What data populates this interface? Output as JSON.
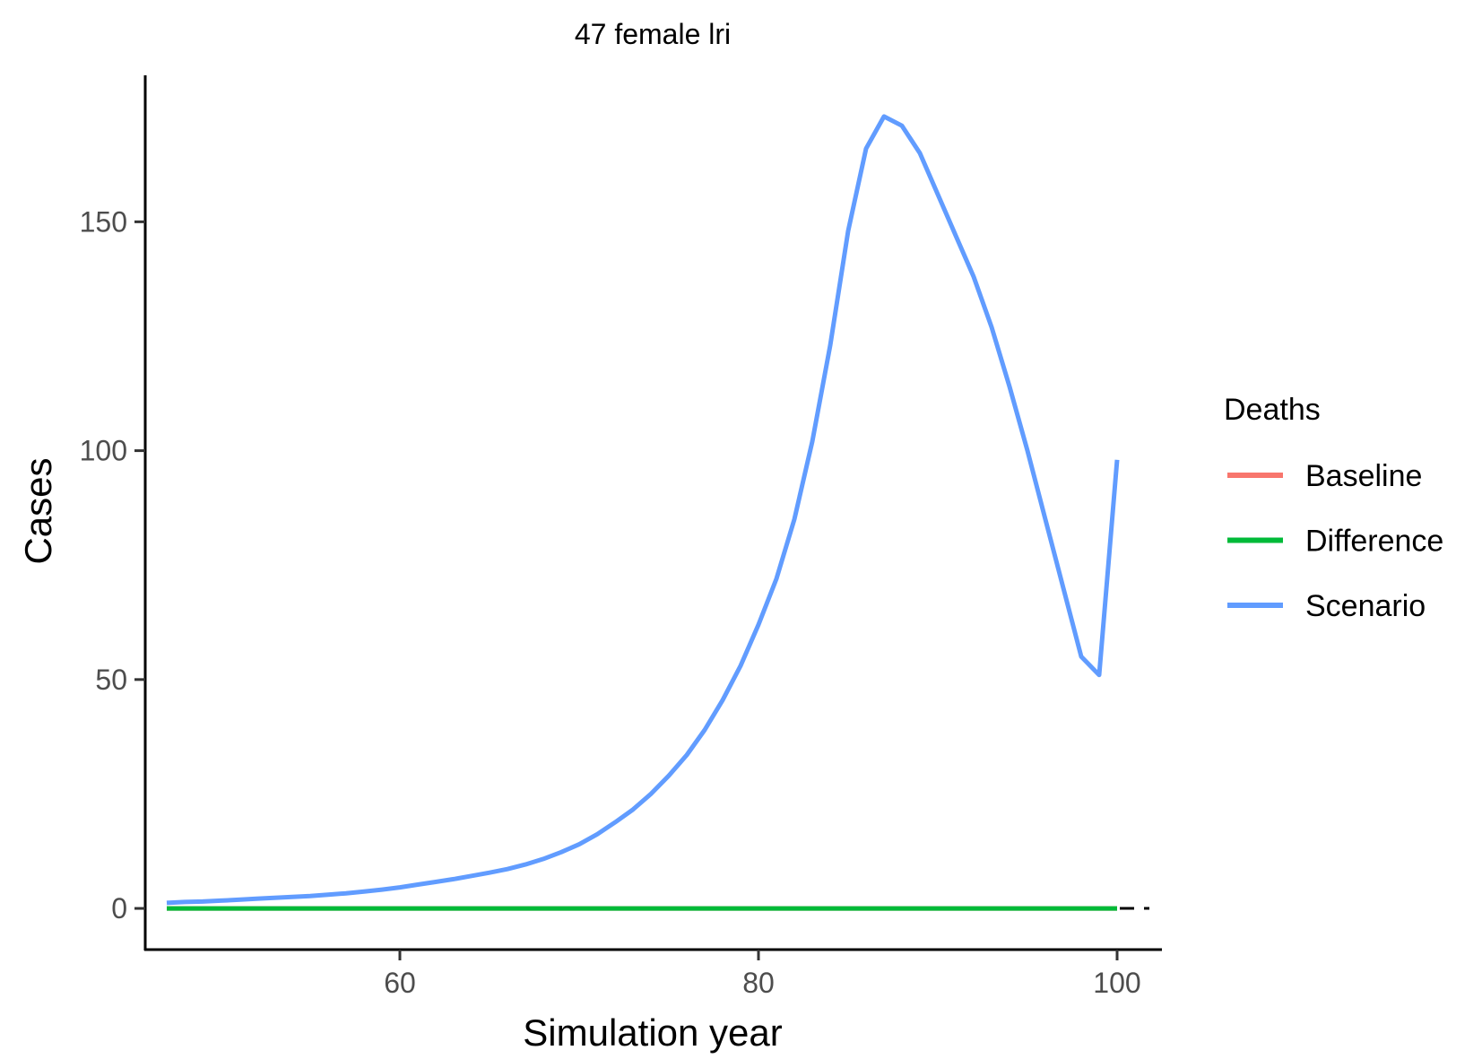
{
  "chart_data": {
    "type": "line",
    "title": "47 female lri",
    "xlabel": "Simulation year",
    "ylabel": "Cases",
    "xlim": [
      45.8,
      102.5
    ],
    "ylim": [
      -9,
      182
    ],
    "xticks": [
      60,
      80,
      100
    ],
    "yticks": [
      0,
      50,
      100,
      150
    ],
    "grid": false,
    "reference_line": {
      "y": 0,
      "style": "dashed",
      "color": "#000000"
    },
    "legend": {
      "title": "Deaths",
      "position": "right",
      "entries": [
        "Baseline",
        "Difference",
        "Scenario"
      ]
    },
    "colors": {
      "Baseline": "#F8766D",
      "Difference": "#00BA38",
      "Scenario": "#619CFF"
    },
    "series": [
      {
        "name": "Baseline",
        "x": [
          47,
          48,
          49,
          50,
          51,
          52,
          53,
          54,
          55,
          56,
          57,
          58,
          59,
          60,
          61,
          62,
          63,
          64,
          65,
          66,
          67,
          68,
          69,
          70,
          71,
          72,
          73,
          74,
          75,
          76,
          77,
          78,
          79,
          80,
          81,
          82,
          83,
          84,
          85,
          86,
          87,
          88,
          89,
          90,
          91,
          92,
          93,
          94,
          95,
          96,
          97,
          98,
          99,
          100
        ],
        "values": [
          0,
          0,
          0,
          0,
          0,
          0,
          0,
          0,
          0,
          0,
          0,
          0,
          0,
          0,
          0,
          0,
          0,
          0,
          0,
          0,
          0,
          0,
          0,
          0,
          0,
          0,
          0,
          0,
          0,
          0,
          0,
          0,
          0,
          0,
          0,
          0,
          0,
          0,
          0,
          0,
          0,
          0,
          0,
          0,
          0,
          0,
          0,
          0,
          0,
          0,
          0,
          0,
          0,
          0
        ]
      },
      {
        "name": "Difference",
        "x": [
          47,
          48,
          49,
          50,
          51,
          52,
          53,
          54,
          55,
          56,
          57,
          58,
          59,
          60,
          61,
          62,
          63,
          64,
          65,
          66,
          67,
          68,
          69,
          70,
          71,
          72,
          73,
          74,
          75,
          76,
          77,
          78,
          79,
          80,
          81,
          82,
          83,
          84,
          85,
          86,
          87,
          88,
          89,
          90,
          91,
          92,
          93,
          94,
          95,
          96,
          97,
          98,
          99,
          100
        ],
        "values": [
          0,
          0,
          0,
          0,
          0,
          0,
          0,
          0,
          0,
          0,
          0,
          0,
          0,
          0,
          0,
          0,
          0,
          0,
          0,
          0,
          0,
          0,
          0,
          0,
          0,
          0,
          0,
          0,
          0,
          0,
          0,
          0,
          0,
          0,
          0,
          0,
          0,
          0,
          0,
          0,
          0,
          0,
          0,
          0,
          0,
          0,
          0,
          0,
          0,
          0,
          0,
          0,
          0,
          0
        ]
      },
      {
        "name": "Scenario",
        "x": [
          47,
          48,
          49,
          50,
          51,
          52,
          53,
          54,
          55,
          56,
          57,
          58,
          59,
          60,
          61,
          62,
          63,
          64,
          65,
          66,
          67,
          68,
          69,
          70,
          71,
          72,
          73,
          74,
          75,
          76,
          77,
          78,
          79,
          80,
          81,
          82,
          83,
          84,
          85,
          86,
          87,
          88,
          89,
          90,
          91,
          92,
          93,
          94,
          95,
          96,
          97,
          98,
          99,
          100
        ],
        "values": [
          1.2,
          1.4,
          1.5,
          1.7,
          1.9,
          2.1,
          2.3,
          2.5,
          2.7,
          3.0,
          3.3,
          3.7,
          4.1,
          4.6,
          5.2,
          5.8,
          6.4,
          7.1,
          7.8,
          8.6,
          9.6,
          10.8,
          12.3,
          14.0,
          16.2,
          18.8,
          21.6,
          25.0,
          29.0,
          33.5,
          39.0,
          45.5,
          53.0,
          62.0,
          72.0,
          85.0,
          102.0,
          123.0,
          148.0,
          166.0,
          173.0,
          171.0,
          165.0,
          156.0,
          147.0,
          138.0,
          127.0,
          114.0,
          100.0,
          85.0,
          70.0,
          55.0,
          51.0,
          98.0
        ]
      }
    ]
  }
}
